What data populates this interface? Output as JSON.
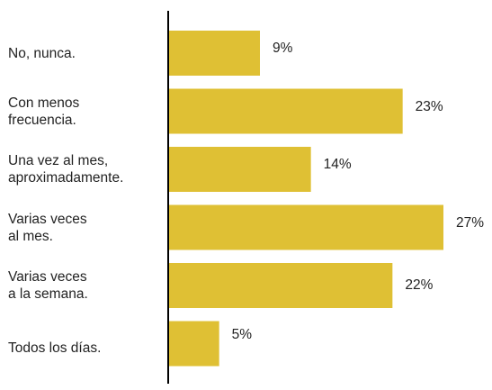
{
  "colors": {
    "bar": "#DFC034",
    "axis": "#000000",
    "text": "#222222"
  },
  "chart_data": {
    "type": "bar",
    "orientation": "horizontal",
    "categories": [
      "No, nunca.",
      "Con menos\nfrecuencia.",
      "Una vez al mes,\naproximadamente.",
      "Varias veces\nal mes.",
      "Varias veces\na la semana.",
      "Todos los días."
    ],
    "values": [
      9,
      23,
      14,
      27,
      22,
      5
    ],
    "value_labels": [
      "9%",
      "23%",
      "14%",
      "27%",
      "22%",
      "5%"
    ],
    "xlim": [
      0,
      27
    ],
    "grid": false,
    "legend": "none"
  }
}
